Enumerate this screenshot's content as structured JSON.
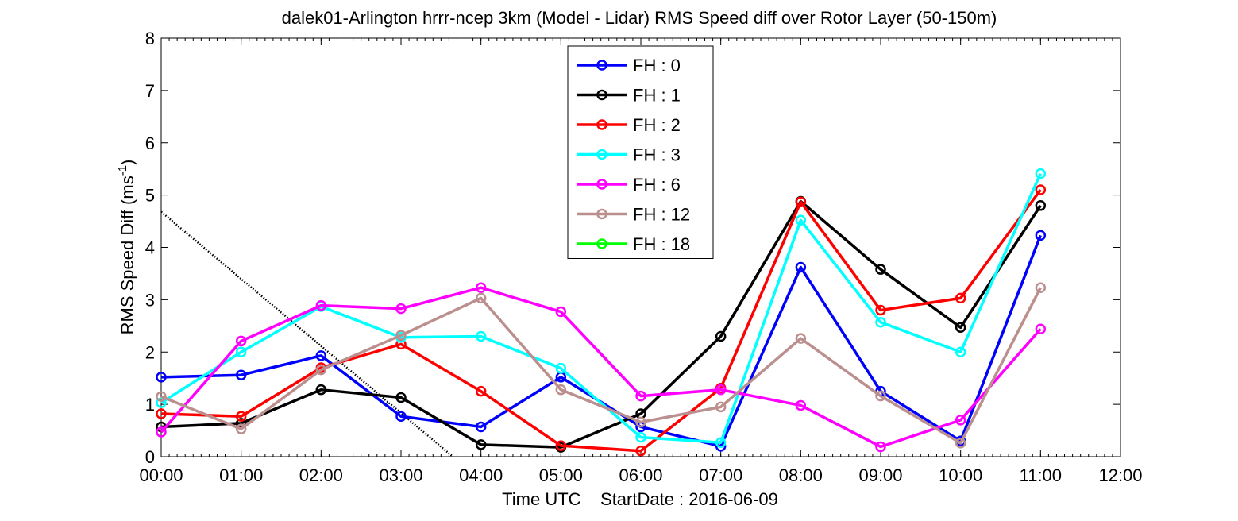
{
  "chart_data": {
    "type": "line",
    "title": "dalek01-Arlington hrrr-ncep 3km (Model - Lidar) RMS Speed diff over Rotor Layer (50-150m)",
    "ylabel": "RMS Speed Diff (ms",
    "ylabel_sup": "-1",
    "ylabel_close": ")",
    "xlabel": "Time UTC    StartDate : 2016-06-09",
    "x_ticks": [
      "00:00",
      "01:00",
      "02:00",
      "03:00",
      "04:00",
      "05:00",
      "06:00",
      "07:00",
      "08:00",
      "09:00",
      "10:00",
      "11:00",
      "12:00"
    ],
    "y_ticks": [
      "0",
      "1",
      "2",
      "3",
      "4",
      "5",
      "6",
      "7",
      "8"
    ],
    "xlim": [
      0,
      12
    ],
    "ylim": [
      0,
      8
    ],
    "legend_position": "top-center",
    "series": [
      {
        "name": "FH : 0",
        "color": "#0000ff",
        "x": [
          0,
          1,
          2,
          3,
          4,
          5,
          6,
          7,
          8,
          9,
          10,
          11
        ],
        "values": [
          1.52,
          1.56,
          1.93,
          0.77,
          0.57,
          1.52,
          0.57,
          0.2,
          3.62,
          1.25,
          0.3,
          4.23
        ]
      },
      {
        "name": "FH : 1",
        "color": "#000000",
        "x": [
          0,
          1,
          2,
          3,
          4,
          5,
          6,
          7,
          8,
          9,
          10,
          11
        ],
        "values": [
          0.57,
          0.64,
          1.28,
          1.13,
          0.23,
          0.18,
          0.82,
          2.3,
          4.88,
          3.58,
          2.47,
          4.8
        ]
      },
      {
        "name": "FH : 2",
        "color": "#ff0000",
        "x": [
          0,
          1,
          2,
          3,
          4,
          5,
          6,
          7,
          8,
          9,
          10,
          11
        ],
        "values": [
          0.82,
          0.77,
          1.7,
          2.15,
          1.25,
          0.21,
          0.11,
          1.31,
          4.87,
          2.8,
          3.03,
          5.1
        ]
      },
      {
        "name": "FH : 3",
        "color": "#00ffff",
        "x": [
          0,
          1,
          2,
          3,
          4,
          5,
          6,
          7,
          8,
          9,
          10,
          11
        ],
        "values": [
          1.03,
          2.0,
          2.87,
          2.28,
          2.3,
          1.69,
          0.37,
          0.27,
          4.52,
          2.57,
          2.0,
          5.41
        ]
      },
      {
        "name": "FH : 6",
        "color": "#ff00ff",
        "x": [
          0,
          1,
          2,
          3,
          4,
          5,
          6,
          7,
          8,
          9,
          10,
          11
        ],
        "values": [
          0.47,
          2.21,
          2.89,
          2.83,
          3.23,
          2.77,
          1.16,
          1.28,
          0.98,
          0.19,
          0.7,
          2.44
        ]
      },
      {
        "name": "FH : 12",
        "color": "#bc8f8f",
        "x": [
          0,
          1,
          2,
          3,
          4,
          5,
          6,
          7,
          8,
          9,
          10,
          11
        ],
        "values": [
          1.15,
          0.53,
          1.66,
          2.32,
          3.03,
          1.28,
          0.66,
          0.95,
          2.26,
          1.16,
          0.26,
          3.23
        ]
      },
      {
        "name": "FH : 18",
        "color": "#00ff00",
        "x": [],
        "values": []
      }
    ],
    "reference_line": {
      "style": "dotted",
      "color": "#000000",
      "x": [
        0,
        3.65
      ],
      "values": [
        4.68,
        0
      ]
    }
  }
}
